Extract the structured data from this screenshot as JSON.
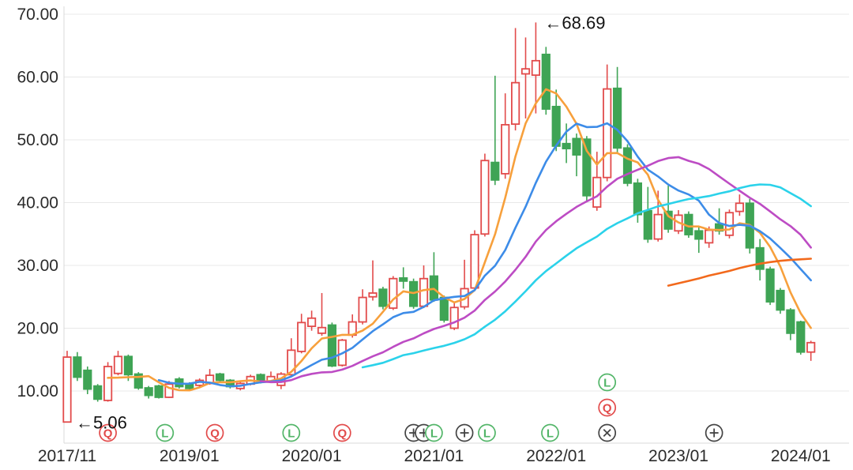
{
  "chart_data": {
    "type": "candlestick",
    "title": "",
    "grid": true,
    "colors": {
      "up": "#e24b4b",
      "down": "#3fa455",
      "grid_line": "#e8e8e8",
      "axis_line": "#d8d8d8",
      "axis_text": "#2b2b2b",
      "annotation_text": "#111111",
      "marker_red": "#e24b4b",
      "marker_green": "#52b568",
      "marker_gray": "#444444"
    },
    "y_axis": {
      "tick_values": [
        70,
        60,
        50,
        40,
        30,
        20,
        10
      ],
      "tick_labels": [
        "70.00",
        "60.00",
        "50.00",
        "40.00",
        "30.00",
        "20.00",
        "10.00"
      ],
      "min": 1.7,
      "max": 72.3
    },
    "x_axis": {
      "ticks": [
        {
          "index": 0,
          "label": "2017/11"
        },
        {
          "index": 12,
          "label": "2019/01"
        },
        {
          "index": 24,
          "label": "2020/01"
        },
        {
          "index": 36,
          "label": "2021/01"
        },
        {
          "index": 48,
          "label": "2022/01"
        },
        {
          "index": 60,
          "label": "2023/01"
        },
        {
          "index": 72,
          "label": "2024/01"
        }
      ]
    },
    "candles": {
      "columns": [
        "date",
        "open",
        "high",
        "low",
        "close"
      ],
      "rows": [
        [
          "2017/11",
          5.06,
          16.4,
          5.06,
          15.4
        ],
        [
          "2017/12",
          15.4,
          16.2,
          11.6,
          12.2
        ],
        [
          "2018/01",
          13.3,
          13.9,
          9.5,
          10.3
        ],
        [
          "2018/02",
          10.8,
          11.1,
          8.3,
          8.7
        ],
        [
          "2018/03",
          8.5,
          14.6,
          8.3,
          13.9
        ],
        [
          "2018/04",
          12.8,
          16.4,
          12.5,
          15.5
        ],
        [
          "2018/05",
          15.5,
          15.8,
          11.6,
          12.6
        ],
        [
          "2018/08",
          12.7,
          13.0,
          10.2,
          10.5
        ],
        [
          "2018/09",
          10.5,
          10.8,
          8.8,
          9.3
        ],
        [
          "2018/10",
          10.8,
          11.0,
          8.8,
          9.0
        ],
        [
          "2018/11",
          9.0,
          11.6,
          8.9,
          11.1
        ],
        [
          "2018/12",
          11.9,
          12.2,
          10.4,
          10.7
        ],
        [
          "2019/01",
          11.1,
          11.4,
          10.0,
          10.4
        ],
        [
          "2019/02",
          10.9,
          12.0,
          10.6,
          11.7
        ],
        [
          "2019/03",
          11.2,
          13.5,
          11.0,
          12.5
        ],
        [
          "2019/04",
          12.7,
          12.9,
          11.4,
          11.7
        ],
        [
          "2019/05",
          11.7,
          11.9,
          10.4,
          10.7
        ],
        [
          "2019/06",
          10.4,
          11.5,
          10.1,
          11.2
        ],
        [
          "2019/07",
          11.1,
          12.6,
          10.9,
          12.3
        ],
        [
          "2019/08",
          12.6,
          12.8,
          11.2,
          11.5
        ],
        [
          "2019/09",
          11.5,
          13.1,
          11.3,
          12.3
        ],
        [
          "2019/10",
          10.9,
          13.0,
          10.3,
          12.7
        ],
        [
          "2019/11",
          12.6,
          18.4,
          12.4,
          16.5
        ],
        [
          "2019/12",
          16.3,
          22.3,
          16.0,
          20.9
        ],
        [
          "2020/01",
          20.3,
          22.8,
          19.6,
          21.6
        ],
        [
          "2020/02",
          19.2,
          25.6,
          18.8,
          20.1
        ],
        [
          "2020/03",
          20.5,
          20.9,
          13.8,
          14.0
        ],
        [
          "2020/04",
          14.1,
          18.3,
          13.9,
          18.1
        ],
        [
          "2020/05",
          18.9,
          22.2,
          18.5,
          21.0
        ],
        [
          "2020/06",
          21.0,
          26.2,
          20.6,
          24.9
        ],
        [
          "2020/07",
          25.0,
          30.8,
          24.4,
          25.6
        ],
        [
          "2020/08",
          26.2,
          26.6,
          23.0,
          23.5
        ],
        [
          "2020/09",
          23.2,
          28.3,
          22.9,
          27.9
        ],
        [
          "2020/10",
          28.0,
          29.7,
          26.3,
          27.5
        ],
        [
          "2020/11",
          27.4,
          27.9,
          23.1,
          23.5
        ],
        [
          "2020/12",
          23.5,
          30.0,
          23.2,
          27.9
        ],
        [
          "2021/01",
          28.3,
          32.1,
          24.2,
          24.5
        ],
        [
          "2021/02",
          24.9,
          25.2,
          20.9,
          21.3
        ],
        [
          "2021/03",
          20.0,
          24.0,
          19.7,
          23.3
        ],
        [
          "2021/04",
          23.4,
          30.9,
          23.0,
          26.3
        ],
        [
          "2021/05",
          26.4,
          35.6,
          25.9,
          34.9
        ],
        [
          "2021/06",
          35.0,
          47.8,
          34.6,
          46.7
        ],
        [
          "2021/07",
          46.4,
          60.2,
          42.8,
          43.6
        ],
        [
          "2021/08",
          44.6,
          57.4,
          43.8,
          52.4
        ],
        [
          "2021/09",
          52.5,
          67.8,
          51.5,
          59.1
        ],
        [
          "2021/10",
          60.5,
          66.3,
          53.4,
          61.3
        ],
        [
          "2021/11",
          60.3,
          68.69,
          54.2,
          62.6
        ],
        [
          "2021/12",
          63.6,
          64.8,
          54.0,
          54.9
        ],
        [
          "2022/01",
          55.3,
          58.0,
          48.2,
          49.0
        ],
        [
          "2022/02",
          49.4,
          52.6,
          46.3,
          48.6
        ],
        [
          "2022/03",
          50.2,
          51.0,
          44.2,
          47.6
        ],
        [
          "2022/04",
          50.1,
          50.6,
          40.2,
          41.1
        ],
        [
          "2022/05",
          39.3,
          48.1,
          38.7,
          44.0
        ],
        [
          "2022/06",
          44.0,
          62.0,
          43.4,
          58.1
        ],
        [
          "2022/07",
          58.2,
          61.6,
          48.0,
          48.7
        ],
        [
          "2022/08",
          48.7,
          49.3,
          42.6,
          43.1
        ],
        [
          "2022/09",
          43.1,
          43.8,
          36.8,
          38.1
        ],
        [
          "2022/10",
          38.7,
          42.5,
          33.6,
          34.2
        ],
        [
          "2022/11",
          34.2,
          41.9,
          33.8,
          38.1
        ],
        [
          "2022/12",
          38.6,
          42.7,
          35.2,
          35.8
        ],
        [
          "2023/01",
          35.5,
          38.8,
          35.0,
          38.0
        ],
        [
          "2023/02",
          38.1,
          38.6,
          34.4,
          34.9
        ],
        [
          "2023/03",
          35.5,
          36.2,
          32.0,
          34.2
        ],
        [
          "2023/04",
          33.6,
          36.2,
          32.8,
          35.6
        ],
        [
          "2023/05",
          36.6,
          39.1,
          34.9,
          35.5
        ],
        [
          "2023/06",
          34.8,
          38.9,
          34.3,
          38.4
        ],
        [
          "2023/07",
          38.6,
          41.3,
          37.9,
          39.9
        ],
        [
          "2023/08",
          39.9,
          40.6,
          31.9,
          32.8
        ],
        [
          "2023/09",
          32.8,
          34.2,
          27.6,
          29.4
        ],
        [
          "2023/10",
          29.4,
          29.8,
          23.7,
          24.2
        ],
        [
          "2023/11",
          26.0,
          26.4,
          22.3,
          22.9
        ],
        [
          "2023/12",
          22.9,
          23.2,
          18.1,
          19.2
        ],
        [
          "2024/01",
          21.0,
          21.2,
          15.8,
          16.2
        ],
        [
          "2024/02",
          16.2,
          18.0,
          14.8,
          17.7
        ]
      ]
    },
    "moving_averages": [
      {
        "name": "MA5",
        "period": 5,
        "color": "#f7a03c"
      },
      {
        "name": "MA10",
        "period": 10,
        "color": "#3d8ce8"
      },
      {
        "name": "MA20",
        "period": 20,
        "color": "#bd4cc4"
      },
      {
        "name": "MA30",
        "period": 30,
        "color": "#2bd2ea"
      },
      {
        "name": "MA60",
        "period": 60,
        "color": "#f2691c"
      }
    ],
    "annotations": [
      {
        "id": "high-label",
        "text": "←68.69",
        "value": 68.69,
        "month_index": 46
      },
      {
        "id": "low-label",
        "text": "←5.06",
        "value": 5.06,
        "month_index": 0
      }
    ],
    "event_markers": [
      {
        "glyph": "Q",
        "color": "red",
        "month_index": 4.0,
        "row": 0
      },
      {
        "glyph": "L",
        "color": "green",
        "month_index": 9.6,
        "row": 0
      },
      {
        "glyph": "Q",
        "color": "red",
        "month_index": 14.5,
        "row": 0
      },
      {
        "glyph": "L",
        "color": "green",
        "month_index": 22.0,
        "row": 0
      },
      {
        "glyph": "Q",
        "color": "red",
        "month_index": 27.0,
        "row": 0
      },
      {
        "glyph": "plus",
        "color": "gray",
        "month_index": 34.0,
        "row": 0
      },
      {
        "glyph": "plus",
        "color": "gray",
        "month_index": 35.0,
        "row": 0
      },
      {
        "glyph": "L",
        "color": "green",
        "month_index": 36.0,
        "row": 0
      },
      {
        "glyph": "plus",
        "color": "gray",
        "month_index": 39.0,
        "row": 0
      },
      {
        "glyph": "L",
        "color": "green",
        "month_index": 41.2,
        "row": 0
      },
      {
        "glyph": "L",
        "color": "green",
        "month_index": 47.4,
        "row": 0
      },
      {
        "glyph": "L",
        "color": "green",
        "month_index": 53.0,
        "row": 2
      },
      {
        "glyph": "Q",
        "color": "red",
        "month_index": 53.0,
        "row": 1
      },
      {
        "glyph": "x",
        "color": "gray",
        "month_index": 53.0,
        "row": 0
      },
      {
        "glyph": "plus",
        "color": "gray",
        "month_index": 63.5,
        "row": 0
      }
    ]
  }
}
